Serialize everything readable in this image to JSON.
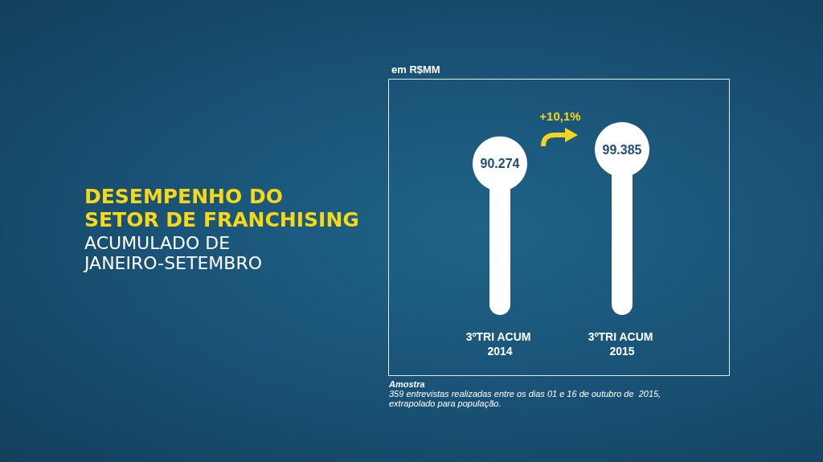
{
  "chart_data": {
    "type": "lollipop",
    "title": "DESEMPENHO DO SETOR DE FRANCHISING",
    "subtitle": "ACUMULADO DE JANEIRO-SETEMBRO",
    "categories": [
      "3ºTRI ACUM 2014",
      "3ºTRI ACUM 2015"
    ],
    "values": [
      90274,
      99385
    ],
    "value_labels": [
      "90.274",
      "99.385"
    ],
    "color": "#ffffff",
    "annotations": [
      "em R$MM",
      "+10,1%",
      "Amostra",
      "359 entrevistas realizadas entre os dias 01 e 16 de outubro de  2015, extrapolado para população."
    ]
  }
}
